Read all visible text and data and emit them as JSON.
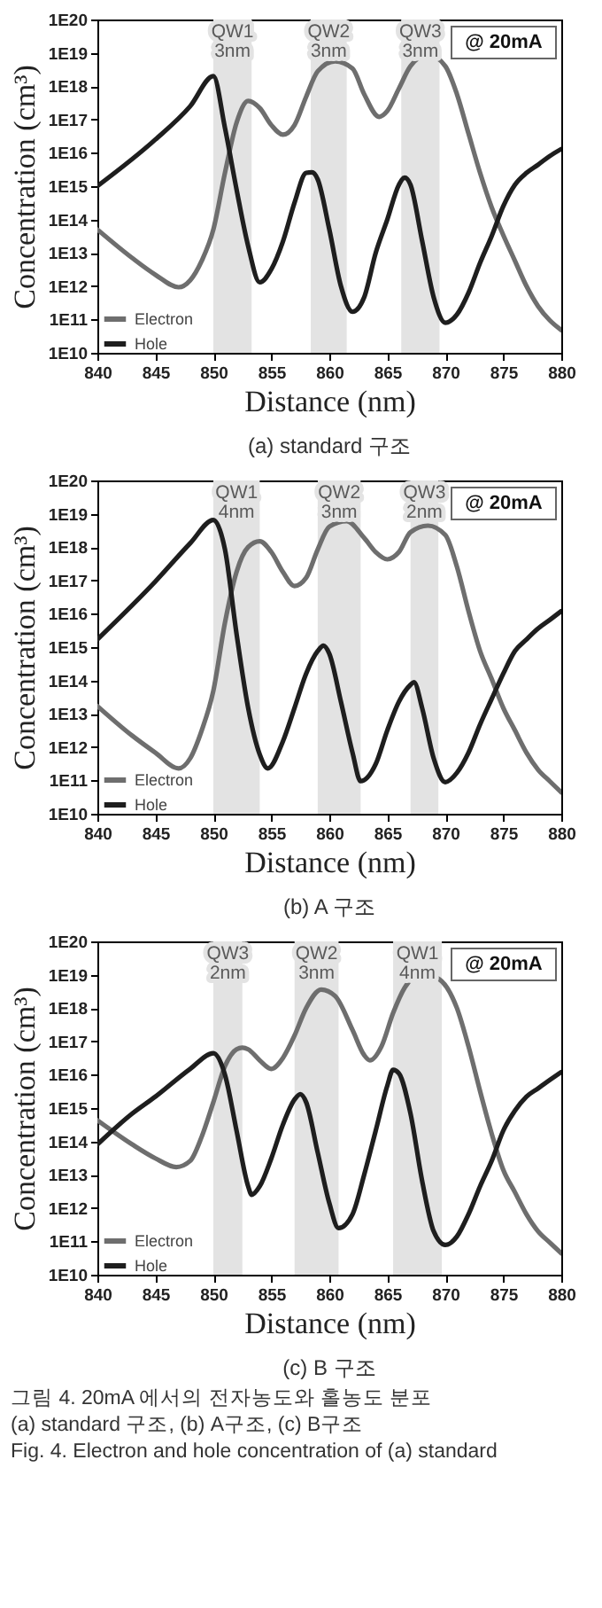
{
  "chart_data": [
    {
      "type": "line",
      "title": "(a) standard 구조",
      "xlabel": "Distance (nm)",
      "ylabel": "Concentration (cm³)",
      "log": "y",
      "legend": "bottom left",
      "xlim": [
        840,
        880
      ],
      "xticks": [
        840,
        845,
        850,
        855,
        860,
        865,
        870,
        875,
        880
      ],
      "ylim": [
        10000000000.0,
        1e+20
      ],
      "yticks": [
        {
          "value": 10000000000.0,
          "label": "1E10"
        },
        {
          "value": 100000000000.0,
          "label": "1E11"
        },
        {
          "value": 1000000000000.0,
          "label": "1E12"
        },
        {
          "value": 10000000000000.0,
          "label": "1E13"
        },
        {
          "value": 100000000000000.0,
          "label": "1E14"
        },
        {
          "value": 1000000000000000.0,
          "label": "1E15"
        },
        {
          "value": 1e+16,
          "label": "1E16"
        },
        {
          "value": 1e+17,
          "label": "1E17"
        },
        {
          "value": 1e+18,
          "label": "1E18"
        },
        {
          "value": 1e+19,
          "label": "1E19"
        },
        {
          "value": 1e+20,
          "label": "1E20"
        }
      ],
      "bands": [
        {
          "axis": "x",
          "from": 850,
          "to": 853.3,
          "label": "QW1 3nm",
          "color": "#e3e3e3"
        },
        {
          "axis": "x",
          "from": 858.4,
          "to": 861.5,
          "label": "QW2 3nm",
          "color": "#e3e3e3"
        },
        {
          "axis": "x",
          "from": 866.2,
          "to": 869.5,
          "label": "QW3 3nm",
          "color": "#e3e3e3"
        }
      ],
      "annotations": [
        "@ 20mA"
      ],
      "series": [
        {
          "name": "Electron",
          "color": "#6e6e6e",
          "x": [
            840,
            843,
            845,
            847,
            848,
            849,
            850,
            851,
            852,
            853,
            854,
            855,
            856,
            857,
            858,
            859,
            860.5,
            862,
            863,
            864.3,
            865,
            866,
            867,
            868.5,
            870,
            871,
            872,
            873,
            874,
            875,
            876,
            877,
            878,
            879,
            880
          ],
          "values": [
            50000000000000.0,
            7000000000000.0,
            2200000000000.0,
            930000000000.0,
            1500000000000.0,
            5800000000000.0,
            50000000000000.0,
            2500000000000000.0,
            8e+16,
            3.6e+17,
            2.2e+17,
            6.8e+16,
            3.5e+16,
            6.8e+16,
            4.8e+17,
            2.8e+18,
            5.6e+18,
            3.4e+18,
            5.8e+17,
            1.2e+17,
            1.8e+17,
            8.5e+17,
            4e+18,
            8.9e+18,
            4e+18,
            5.8e+17,
            3.8e+16,
            2500000000000000.0,
            230000000000000.0,
            34000000000000.0,
            5800000000000.0,
            1000000000000.0,
            250000000000.0,
            95000000000.0,
            48000000000.0
          ]
        },
        {
          "name": "Hole",
          "color": "#1e1e1e",
          "x": [
            840,
            845,
            848,
            850,
            851,
            852,
            853,
            854,
            855,
            856,
            857,
            858,
            858.5,
            859,
            860,
            861,
            862,
            863,
            864,
            865,
            866,
            866.5,
            867,
            868,
            869,
            870,
            871,
            872,
            873,
            874,
            875,
            876,
            877,
            878,
            879,
            880
          ],
          "values": [
            1000000000000000.0,
            2.5e+16,
            2.5e+17,
            2e+18,
            5.6e+16,
            800000000000000.0,
            16000000000000.0,
            1300000000000.0,
            3200000000000.0,
            22000000000000.0,
            320000000000000.0,
            2500000000000000.0,
            2600000000000000.0,
            1600000000000000.0,
            50000000000000.0,
            1000000000000.0,
            170000000000.0,
            460000000000.0,
            10000000000000.0,
            100000000000000.0,
            1100000000000000.0,
            1800000000000000.0,
            1100000000000000.0,
            23000000000000.0,
            460000000000.0,
            80000000000.0,
            140000000000.0,
            630000000000.0,
            5000000000000.0,
            32000000000000.0,
            250000000000000.0,
            1100000000000000.0,
            2500000000000000.0,
            4400000000000000.0,
            8000000000000000.0,
            1.3e+16
          ]
        }
      ]
    },
    {
      "type": "line",
      "title": "(b) A 구조",
      "xlabel": "Distance (nm)",
      "ylabel": "Concentration (cm³)",
      "log": "y",
      "legend": "bottom left",
      "xlim": [
        840,
        880
      ],
      "xticks": [
        840,
        845,
        850,
        855,
        860,
        865,
        870,
        875,
        880
      ],
      "ylim": [
        10000000000.0,
        1e+20
      ],
      "yticks": [
        {
          "value": 10000000000.0,
          "label": "1E10"
        },
        {
          "value": 100000000000.0,
          "label": "1E11"
        },
        {
          "value": 1000000000000.0,
          "label": "1E12"
        },
        {
          "value": 10000000000000.0,
          "label": "1E13"
        },
        {
          "value": 100000000000000.0,
          "label": "1E14"
        },
        {
          "value": 1000000000000000.0,
          "label": "1E15"
        },
        {
          "value": 1e+16,
          "label": "1E16"
        },
        {
          "value": 1e+17,
          "label": "1E17"
        },
        {
          "value": 1e+18,
          "label": "1E18"
        },
        {
          "value": 1e+19,
          "label": "1E19"
        },
        {
          "value": 1e+20,
          "label": "1E20"
        }
      ],
      "bands": [
        {
          "axis": "x",
          "from": 850,
          "to": 854,
          "label": "QW1 4nm",
          "color": "#e3e3e3"
        },
        {
          "axis": "x",
          "from": 859,
          "to": 862.7,
          "label": "QW2 3nm",
          "color": "#e3e3e3"
        },
        {
          "axis": "x",
          "from": 867,
          "to": 869.4,
          "label": "QW3 2nm",
          "color": "#e3e3e3"
        }
      ],
      "annotations": [
        "@ 20mA"
      ],
      "series": [
        {
          "name": "Electron",
          "color": "#6e6e6e",
          "x": [
            840,
            843,
            845,
            847,
            848,
            849,
            850,
            851,
            852,
            853,
            854,
            855,
            856,
            857,
            858,
            859,
            860,
            861.5,
            863,
            864,
            865,
            866,
            867,
            868.5,
            870,
            871,
            872,
            873,
            874,
            875,
            876,
            877,
            878,
            879,
            880
          ],
          "values": [
            17000000000000.0,
            2200000000000.0,
            680000000000.0,
            230000000000.0,
            460000000000.0,
            3200000000000.0,
            49000000000000.0,
            5400000000000000.0,
            1.8e+17,
            1e+18,
            1.5e+18,
            7.1e+17,
            1.8e+17,
            6.8e+16,
            1.2e+17,
            8.5e+17,
            4.1e+18,
            6e+18,
            1.9e+18,
            7.1e+17,
            4.3e+17,
            7.1e+17,
            2.8e+18,
            4.4e+18,
            2.3e+18,
            2.6e+17,
            1.2e+16,
            760000000000000.0,
            110000000000000.0,
            15000000000000.0,
            3200000000000.0,
            680000000000.0,
            210000000000.0,
            95000000000.0,
            44000000000.0
          ]
        },
        {
          "name": "Hole",
          "color": "#1e1e1e",
          "x": [
            840,
            845,
            848,
            850,
            851,
            852,
            853,
            854,
            854.7,
            856,
            857,
            858,
            859,
            859.5,
            860,
            861,
            862,
            862.7,
            864,
            865,
            866,
            867,
            867.3,
            868,
            869,
            870,
            871,
            872,
            873,
            874,
            875,
            876,
            877,
            878,
            879,
            880
          ],
          "values": [
            1700000000000000.0,
            9.3e+16,
            1.3e+18,
            6.5e+18,
            8.5e+17,
            2500000000000000.0,
            15000000000000.0,
            600000000000.0,
            230000000000.0,
            1500000000000.0,
            15000000000000.0,
            160000000000000.0,
            760000000000000.0,
            1100000000000000.0,
            630000000000000.0,
            23000000000000.0,
            680000000000.0,
            95000000000.0,
            310000000000.0,
            3200000000000.0,
            23000000000000.0,
            74000000000000.0,
            89000000000000.0,
            15000000000000.0,
            460000000000.0,
            89000000000.0,
            170000000000.0,
            680000000000.0,
            4800000000000.0,
            28000000000000.0,
            160000000000000.0,
            760000000000000.0,
            1700000000000000.0,
            3600000000000000.0,
            6500000000000000.0,
            1.2e+16
          ]
        }
      ]
    },
    {
      "type": "line",
      "title": "(c) B 구조",
      "xlabel": "Distance (nm)",
      "ylabel": "Concentration (cm³)",
      "log": "y",
      "legend": "bottom left",
      "xlim": [
        840,
        880
      ],
      "xticks": [
        840,
        845,
        850,
        855,
        860,
        865,
        870,
        875,
        880
      ],
      "ylim": [
        10000000000.0,
        1e+20
      ],
      "yticks": [
        {
          "value": 10000000000.0,
          "label": "1E10"
        },
        {
          "value": 100000000000.0,
          "label": "1E11"
        },
        {
          "value": 1000000000000.0,
          "label": "1E12"
        },
        {
          "value": 10000000000000.0,
          "label": "1E13"
        },
        {
          "value": 100000000000000.0,
          "label": "1E14"
        },
        {
          "value": 1000000000000000.0,
          "label": "1E15"
        },
        {
          "value": 1e+16,
          "label": "1E16"
        },
        {
          "value": 1e+17,
          "label": "1E17"
        },
        {
          "value": 1e+18,
          "label": "1E18"
        },
        {
          "value": 1e+19,
          "label": "1E19"
        },
        {
          "value": 1e+20,
          "label": "1E20"
        }
      ],
      "bands": [
        {
          "axis": "x",
          "from": 850,
          "to": 852.5,
          "label": "QW3 2nm",
          "color": "#e3e3e3"
        },
        {
          "axis": "x",
          "from": 857,
          "to": 860.8,
          "label": "QW2 3nm",
          "color": "#e3e3e3"
        },
        {
          "axis": "x",
          "from": 865.5,
          "to": 869.7,
          "label": "QW1 4nm",
          "color": "#e3e3e3"
        }
      ],
      "annotations": [
        "@ 20mA",
        "그림 4. 20mA 에서의 전자농도와 홀농도 분포",
        "(a) standard 구조, (b) A구조, (c) B구조",
        "Fig. 4. Electron and hole concentration of (a) standard"
      ],
      "series": [
        {
          "name": "Electron",
          "color": "#6e6e6e",
          "x": [
            840,
            843,
            845,
            846.8,
            848,
            849,
            850,
            851,
            852,
            852.5,
            853,
            854,
            855,
            856,
            857,
            858,
            859.3,
            860.5,
            862,
            863,
            863.5,
            864.5,
            865.5,
            866.5,
            868,
            869.5,
            871,
            872,
            873,
            874,
            875,
            876,
            877,
            878,
            879,
            880
          ],
          "values": [
            430000000000000.0,
            81000000000000.0,
            31000000000000.0,
            17000000000000.0,
            26000000000000.0,
            140000000000000.0,
            1500000000000000.0,
            1.8e+16,
            5.8e+16,
            6.5e+16,
            5.8e+16,
            2.7e+16,
            1.5e+16,
            3.2e+16,
            1.5e+17,
            1e+18,
            3.6e+18,
            2.3e+18,
            2.2e+17,
            3.9e+16,
            2.7e+16,
            7.1e+16,
            7.1e+17,
            4.1e+18,
            1.1e+19,
            7.2e+18,
            1e+18,
            7.1e+16,
            3200000000000000.0,
            170000000000000.0,
            14000000000000.0,
            3000000000000.0,
            650000000000.0,
            200000000000.0,
            93000000000.0,
            44000000000.0
          ]
        },
        {
          "name": "Hole",
          "color": "#1e1e1e",
          "x": [
            840,
            843,
            845,
            848,
            850,
            851,
            852,
            853,
            853.3,
            854,
            855,
            856,
            857,
            857.5,
            858,
            859,
            860,
            860.8,
            862,
            863,
            864,
            865,
            865.5,
            866,
            867,
            868,
            869,
            870,
            871,
            872,
            873,
            874,
            875,
            876,
            877,
            878,
            879,
            880
          ],
          "values": [
            81000000000000.0,
            680000000000000.0,
            2200000000000000.0,
            1.5e+16,
            4.4e+16,
            1e+16,
            210000000000000.0,
            4500000000000.0,
            2500000000000.0,
            4500000000000.0,
            31000000000000.0,
            320000000000000.0,
            1800000000000000.0,
            2600000000000000.0,
            1500000000000000.0,
            46000000000000.0,
            1400000000000.0,
            250000000000.0,
            650000000000.0,
            9800000000000.0,
            210000000000000.0,
            4700000000000000.0,
            1.4e+16,
            1.1e+16,
            680000000000000.0,
            6600000000000.0,
            200000000000.0,
            78000000000.0,
            140000000000.0,
            650000000000.0,
            4500000000000.0,
            26000000000000.0,
            210000000000000.0,
            830000000000000.0,
            2200000000000000.0,
            3900000000000000.0,
            6900000000000000.0,
            1.2e+16
          ]
        }
      ]
    }
  ]
}
